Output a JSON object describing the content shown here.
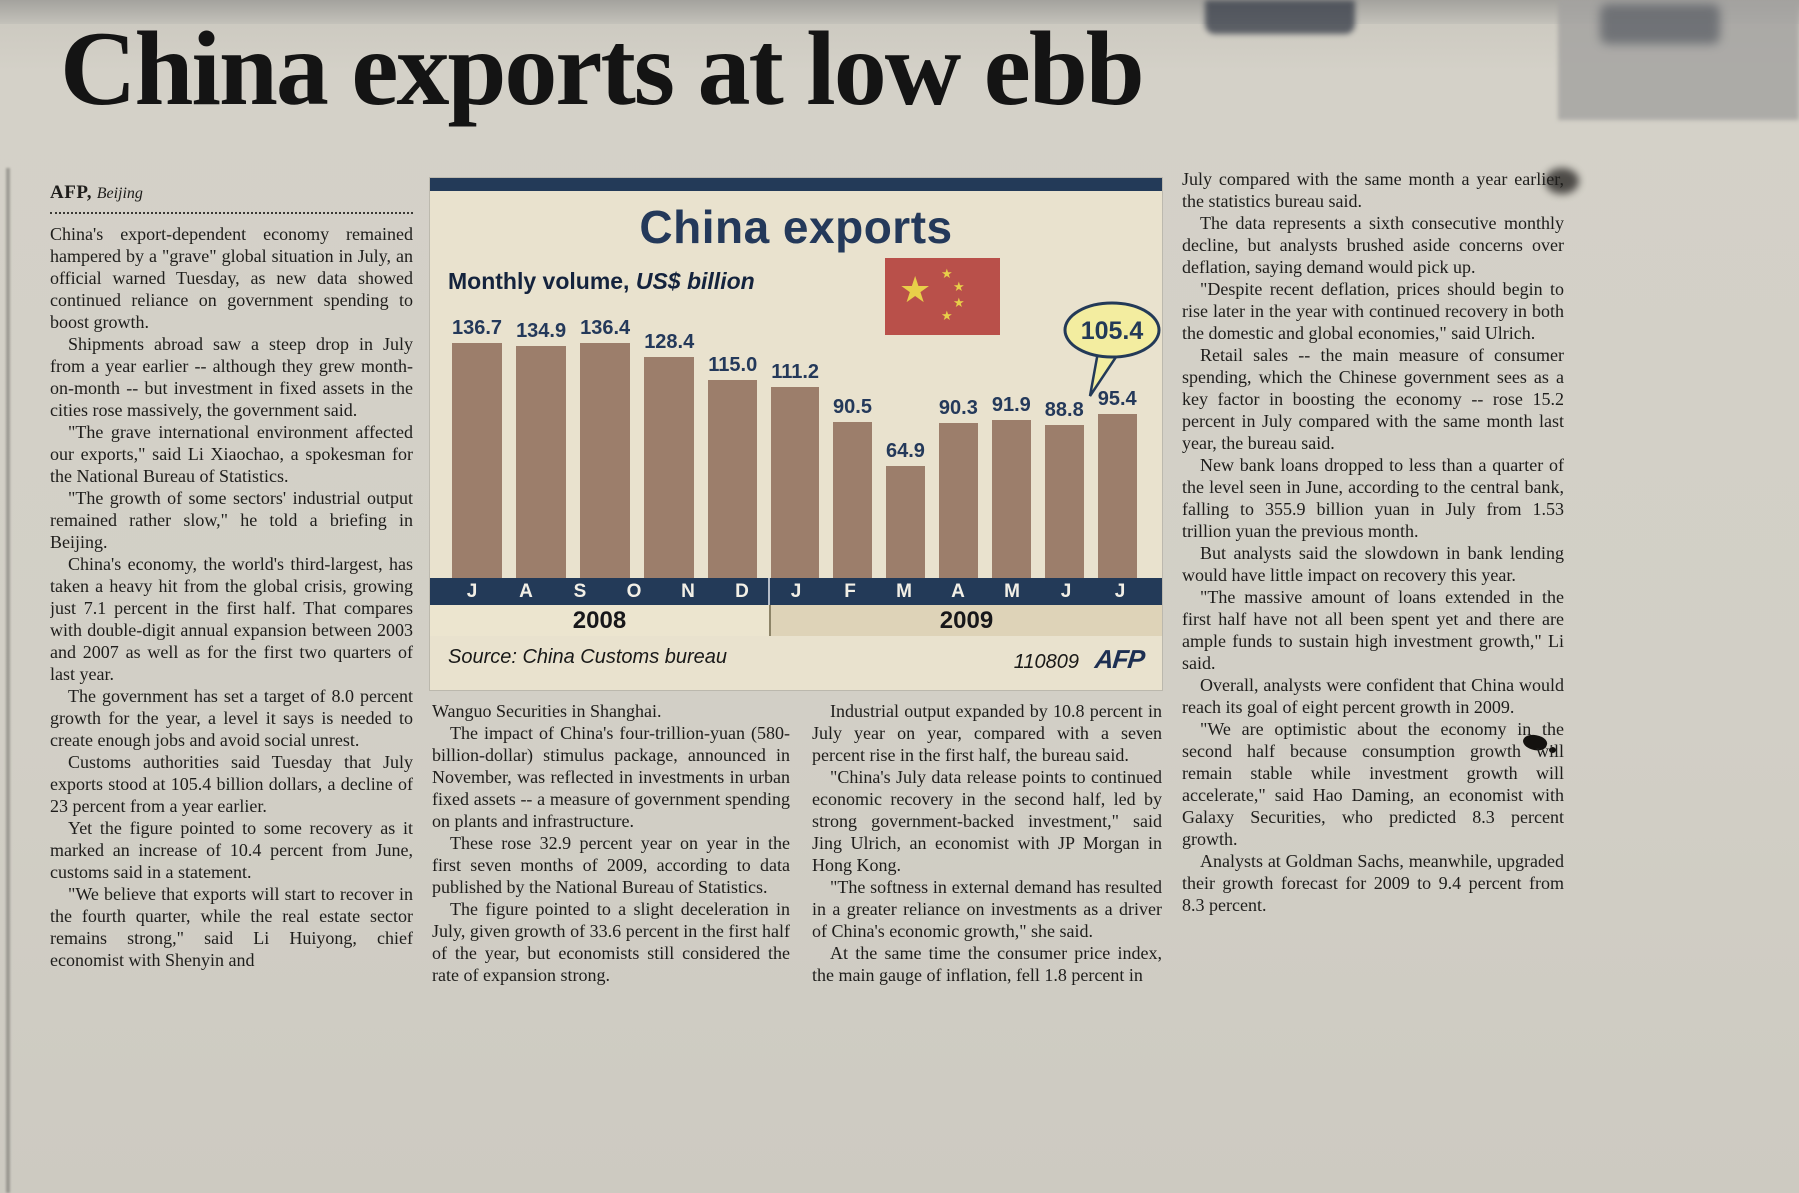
{
  "headline": "China exports at low ebb",
  "byline": {
    "agency": "AFP,",
    "location": "Beijing"
  },
  "article": {
    "col_left": [
      "China's export-dependent economy remained hampered by a \"grave\" global situation in July, an official warned Tuesday, as new data showed continued reliance on government spending to boost growth.",
      "Shipments abroad saw a steep drop in July from a year earlier -- although they grew month-on-month -- but investment in fixed assets in the cities rose massively, the government said.",
      "\"The grave international environment affected our exports,\" said Li Xiaochao, a spokesman for the National Bureau of Statistics.",
      "\"The growth of some sectors' industrial output remained rather slow,\" he told a briefing in Beijing.",
      "China's economy, the world's third-largest, has taken a heavy hit from the global crisis, growing just 7.1 percent in the first half. That compares with double-digit annual expansion between 2003 and 2007 as well as for the first two quarters of last year.",
      "The government has set a target of 8.0 percent growth for the year, a level it says is needed to create enough jobs and avoid social unrest.",
      "Customs authorities said Tuesday that July exports stood at 105.4 billion dollars, a decline of 23 percent from a year earlier.",
      "Yet the figure pointed to some recovery as it marked an increase of 10.4 percent from June, customs said in a statement.",
      "\"We believe that exports will start to recover in the fourth quarter, while the real estate sector remains strong,\" said Li Huiyong, chief economist with Shenyin and"
    ],
    "col_mid1": [
      "Wanguo Securities in Shanghai.",
      "The impact of China's four-trillion-yuan (580-billion-dollar) stimulus package, announced in November, was reflected in investments in urban fixed assets -- a measure of government spending on plants and infrastructure.",
      "These rose 32.9 percent year on year in the first seven months of 2009, according to data published by the National Bureau of Statistics.",
      "The figure pointed to a slight deceleration in July, given growth of 33.6 percent in the first half of the year, but economists still considered the rate of expansion strong."
    ],
    "col_mid2": [
      "Industrial output expanded by 10.8 percent in July year on year, compared with a seven percent rise in the first half, the bureau said.",
      "\"China's July data release points to continued economic recovery in the second half, led by strong government-backed investment,\" said Jing Ulrich, an economist with JP Morgan in Hong Kong.",
      "\"The softness in external demand has resulted in a greater reliance on investments as a driver of China's economic growth,\" she said.",
      "At the same time the consumer price index, the main gauge of inflation, fell 1.8 percent in"
    ],
    "col_right": [
      "July compared with the same month a year earlier, the statistics bureau said.",
      "The data represents a sixth consecutive monthly decline, but analysts brushed aside concerns over deflation, saying demand would pick up.",
      "\"Despite recent deflation, prices should begin to rise later in the year with continued recovery in both the domestic and global economies,\" said Ulrich.",
      "Retail sales -- the main measure of consumer spending, which the Chinese government sees as a key factor in boosting the economy -- rose 15.2 percent in July compared with the same month last year, the bureau said.",
      "New bank loans dropped to less than a quarter of the level seen in June, according to the central bank, falling to 355.9 billion yuan in July from 1.53 trillion yuan the previous month.",
      "But analysts said the slowdown in bank lending would have little impact on recovery this year.",
      "\"The massive amount of loans extended in the first half have not all been spent yet and there are ample funds to sustain high investment growth,\" Li said.",
      "Overall, analysts were confident that China would reach its goal of eight percent growth in 2009.",
      "\"We are optimistic about the economy in the second half because consumption growth will remain stable while investment growth will accelerate,\" said Hao Daming, an economist with Galaxy Securities, who predicted 8.3 percent growth.",
      "Analysts at Goldman Sachs, meanwhile, upgraded their growth forecast for 2009 to 9.4 percent from 8.3 percent."
    ]
  },
  "chart": {
    "title": "China exports",
    "subtitle_bold": "Monthly volume,",
    "subtitle_italic": " US$ billion",
    "source": "Source: China Customs bureau",
    "credit_number": "110809",
    "credit_logo": "AFP",
    "callout_value": "105.4"
  },
  "chart_data": {
    "type": "bar",
    "title": "China exports",
    "ylabel": "Monthly volume, US$ billion",
    "categories": [
      "J",
      "A",
      "S",
      "O",
      "N",
      "D",
      "J",
      "F",
      "M",
      "A",
      "M",
      "J",
      "J"
    ],
    "values": [
      136.7,
      134.9,
      136.4,
      128.4,
      115.0,
      111.2,
      90.5,
      64.9,
      90.3,
      91.9,
      88.8,
      95.4,
      105.4
    ],
    "year_groups": [
      {
        "label": "2008",
        "months": 6
      },
      {
        "label": "2009",
        "months": 7
      }
    ],
    "ylim": [
      0,
      140
    ],
    "grid": false,
    "legend": "none",
    "bar_color": "#9c7e6b",
    "axis_color": "#233a58",
    "highlight_last": true,
    "source": "China Customs bureau"
  }
}
